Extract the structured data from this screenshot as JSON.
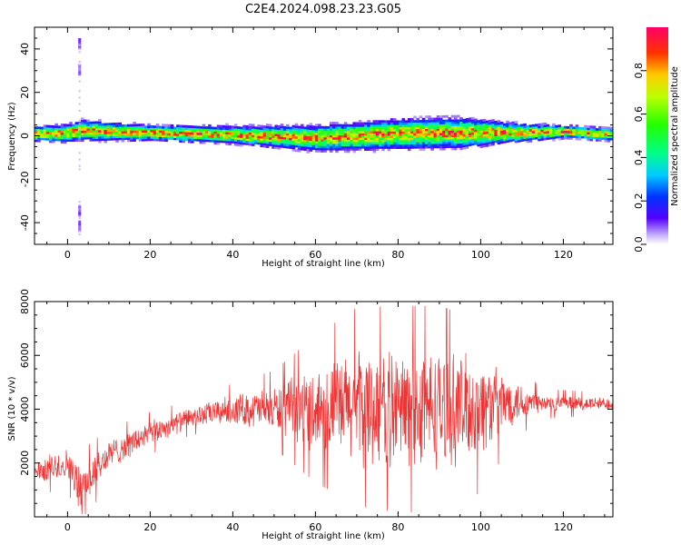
{
  "chart_data": [
    {
      "type": "heatmap",
      "title": "C2E4.2024.098.23.23.G05",
      "xlabel": "Height of straight line (km)",
      "ylabel": "Frequency (Hz)",
      "xlim": [
        -8,
        132
      ],
      "ylim": [
        -50,
        50
      ],
      "xticks": [
        0,
        20,
        40,
        60,
        80,
        100,
        120
      ],
      "yticks": [
        -40,
        -20,
        0,
        20,
        40
      ],
      "colorbar": {
        "label": "Normalized spectral amplitude",
        "range": [
          0,
          1
        ],
        "ticks": [
          "0.0",
          "0.2",
          "0.4",
          "0.6",
          "0.8"
        ],
        "colormap": "gist_rainbow (white at zero)"
      },
      "band": {
        "description_points": [
          {
            "x": -8,
            "center": 0.5,
            "halfwidth": 3
          },
          {
            "x": 0,
            "center": 0.8,
            "halfwidth": 3.5
          },
          {
            "x": 3,
            "center": 2.0,
            "halfwidth": 4
          },
          {
            "x": 20,
            "center": 1.0,
            "halfwidth": 3
          },
          {
            "x": 40,
            "center": 0,
            "halfwidth": 3.5
          },
          {
            "x": 60,
            "center": -1.5,
            "halfwidth": 5
          },
          {
            "x": 80,
            "center": 0.5,
            "halfwidth": 6
          },
          {
            "x": 95,
            "center": 1.0,
            "halfwidth": 6
          },
          {
            "x": 110,
            "center": 1.0,
            "halfwidth": 3.5
          },
          {
            "x": 120,
            "center": 1.5,
            "halfwidth": 2.5
          },
          {
            "x": 132,
            "center": 0,
            "halfwidth": 2.5
          }
        ],
        "spike_x": 3,
        "spike_frequencies": [
          30,
          -35,
          -42,
          42
        ]
      }
    },
    {
      "type": "line",
      "xlabel": "Height of straight line (km)",
      "ylabel": "SNR (10 * v/v)",
      "xlim": [
        -8,
        132
      ],
      "ylim": [
        0,
        8000
      ],
      "xticks": [
        0,
        20,
        40,
        60,
        80,
        100,
        120
      ],
      "yticks": [
        2000,
        4000,
        6000,
        8000
      ],
      "color": "#ee3333",
      "envelope": [
        {
          "x": -8,
          "mean": 1600,
          "amp": 500
        },
        {
          "x": 0,
          "mean": 2000,
          "amp": 600
        },
        {
          "x": 3,
          "mean": 1000,
          "amp": 900
        },
        {
          "x": 10,
          "mean": 2300,
          "amp": 600
        },
        {
          "x": 20,
          "mean": 3100,
          "amp": 500
        },
        {
          "x": 30,
          "mean": 3700,
          "amp": 400
        },
        {
          "x": 40,
          "mean": 4000,
          "amp": 600
        },
        {
          "x": 50,
          "mean": 4000,
          "amp": 900
        },
        {
          "x": 60,
          "mean": 4000,
          "amp": 1700
        },
        {
          "x": 70,
          "mean": 4100,
          "amp": 2300
        },
        {
          "x": 80,
          "mean": 4000,
          "amp": 2400
        },
        {
          "x": 90,
          "mean": 4000,
          "amp": 2400
        },
        {
          "x": 100,
          "mean": 4100,
          "amp": 2000
        },
        {
          "x": 108,
          "mean": 4300,
          "amp": 900
        },
        {
          "x": 115,
          "mean": 4200,
          "amp": 350
        },
        {
          "x": 132,
          "mean": 4200,
          "amp": 250
        }
      ]
    }
  ]
}
